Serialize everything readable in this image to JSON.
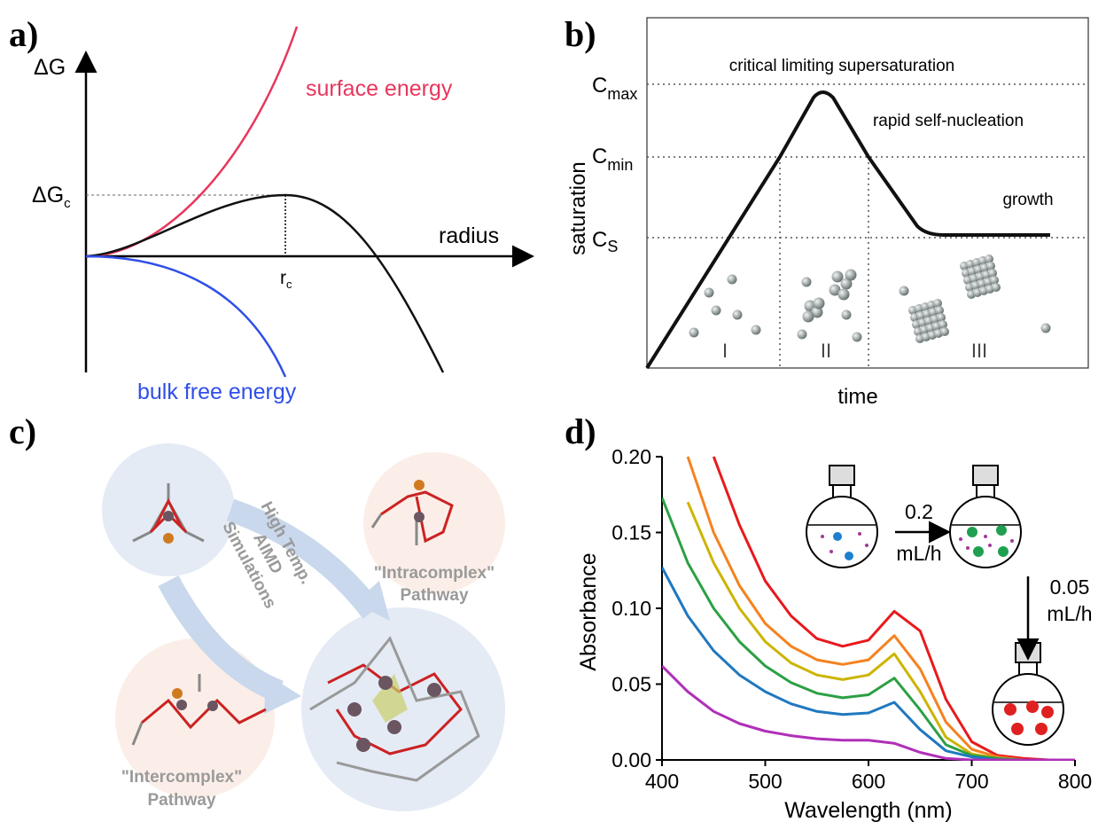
{
  "panel_a": {
    "label": "a)",
    "y_axis_label": "ΔG",
    "x_axis_label": "radius",
    "surface_label": "surface energy",
    "bulk_label": "bulk free energy",
    "critical_energy": {
      "symbol": "ΔG",
      "subscript": "c"
    },
    "critical_radius": {
      "symbol": "r",
      "subscript": "c"
    }
  },
  "panel_b": {
    "label": "b)",
    "y_axis_label": "saturation",
    "x_axis_label": "time",
    "levels": [
      {
        "symbol": "C",
        "subscript": "max"
      },
      {
        "symbol": "C",
        "subscript": "min"
      },
      {
        "symbol": "C",
        "subscript": "S"
      }
    ],
    "regions": [
      "critical limiting supersaturation",
      "rapid self-nucleation",
      "growth"
    ],
    "stages": [
      "I",
      "II",
      "III"
    ]
  },
  "panel_c": {
    "label": "c)",
    "simulation_label": [
      "High Temp.",
      "AIMD",
      "Simulations"
    ],
    "intracomplex": [
      "\"Intracomplex\"",
      "Pathway"
    ],
    "intercomplex": [
      "\"Intercomplex\"",
      "Pathway"
    ]
  },
  "panel_d": {
    "label": "d)",
    "flow_rates": [
      {
        "rate": 0.2,
        "unit": "mL/h"
      },
      {
        "rate": 0.05,
        "unit": "mL/h"
      }
    ]
  },
  "chart_data": {
    "type": "line",
    "x_label": "Wavelength (nm)",
    "y_label": "Absorbance",
    "x": [
      400,
      425,
      450,
      475,
      500,
      525,
      550,
      575,
      600,
      625,
      650,
      675,
      700,
      725,
      750,
      775,
      800
    ],
    "xlim": [
      400,
      800
    ],
    "ylim": [
      0,
      0.2
    ],
    "xticks": [
      400,
      500,
      600,
      700,
      800
    ],
    "yticks": [
      {
        "value": 0,
        "label": "0.00"
      },
      0.05,
      {
        "value": 0.1,
        "label": "0.10"
      },
      0.15,
      {
        "value": 0.2,
        "label": "0.20"
      }
    ],
    "series": [
      {
        "color": "#e8191c",
        "values": [
          null,
          null,
          0.2,
          0.155,
          0.118,
          0.095,
          0.08,
          0.075,
          0.079,
          0.098,
          0.085,
          0.04,
          0.012,
          0.003,
          0.001,
          0,
          0
        ]
      },
      {
        "color": "#f5821f",
        "values": [
          null,
          0.2,
          0.15,
          0.115,
          0.09,
          0.075,
          0.066,
          0.063,
          0.066,
          0.082,
          0.06,
          0.025,
          0.007,
          0.002,
          0,
          0,
          0
        ]
      },
      {
        "color": "#cdb400",
        "values": [
          null,
          0.17,
          0.13,
          0.1,
          0.078,
          0.064,
          0.056,
          0.053,
          0.056,
          0.07,
          0.045,
          0.015,
          0.004,
          0.001,
          0,
          0,
          0
        ]
      },
      {
        "color": "#2ca043",
        "values": [
          0.173,
          0.13,
          0.1,
          0.078,
          0.062,
          0.051,
          0.044,
          0.041,
          0.043,
          0.054,
          0.033,
          0.01,
          0.003,
          0.001,
          0,
          0,
          0
        ]
      },
      {
        "color": "#1f78c0",
        "values": [
          0.127,
          0.095,
          0.072,
          0.056,
          0.045,
          0.037,
          0.032,
          0.03,
          0.031,
          0.038,
          0.02,
          0.006,
          0.002,
          0,
          0,
          0,
          0
        ]
      },
      {
        "color": "#b02fb8",
        "values": [
          0.062,
          0.045,
          0.032,
          0.024,
          0.019,
          0.016,
          0.014,
          0.013,
          0.013,
          0.011,
          0.005,
          0.001,
          0,
          0,
          0,
          0,
          0
        ]
      }
    ]
  }
}
